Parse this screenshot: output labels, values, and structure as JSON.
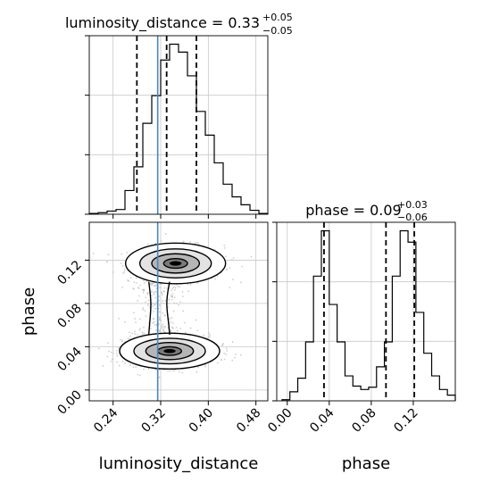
{
  "chart_data": {
    "type": "corner",
    "parameters": [
      "luminosity_distance",
      "phase"
    ],
    "truth": {
      "luminosity_distance": 0.315,
      "truth_color": "#4a86c0"
    },
    "panels": [
      {
        "id": "luminosity_distance_hist",
        "type": "histogram",
        "title_prefix": "luminosity_distance = ",
        "title_value": "0.33",
        "title_plus": "+0.05",
        "title_minus": "−0.05",
        "xlim": [
          0.2,
          0.5
        ],
        "grid": true,
        "bin_edges": [
          0.2,
          0.215,
          0.23,
          0.245,
          0.26,
          0.275,
          0.29,
          0.305,
          0.32,
          0.335,
          0.35,
          0.365,
          0.38,
          0.395,
          0.41,
          0.425,
          0.44,
          0.455,
          0.47,
          0.485,
          0.5
        ],
        "counts": [
          1,
          2,
          4,
          6,
          30,
          60,
          115,
          150,
          195,
          215,
          205,
          175,
          130,
          100,
          65,
          38,
          22,
          12,
          5,
          1
        ],
        "quantile_lines": [
          0.28,
          0.33,
          0.38
        ],
        "truth_line": 0.315
      },
      {
        "id": "phase_hist",
        "type": "histogram",
        "title_prefix": "phase = ",
        "title_value": "0.09",
        "title_plus": "+0.03",
        "title_minus": "−0.06",
        "xlim": [
          -0.01,
          0.16
        ],
        "grid": true,
        "x_tick_values": [
          0.0,
          0.04,
          0.08,
          0.12
        ],
        "x_tick_labels": [
          "0.00",
          "0.04",
          "0.08",
          "0.12"
        ],
        "xlabel": "phase",
        "bin_edges": [
          -0.005,
          0.0025,
          0.01,
          0.0175,
          0.025,
          0.0325,
          0.04,
          0.0475,
          0.055,
          0.0625,
          0.07,
          0.0775,
          0.085,
          0.0925,
          0.1,
          0.1075,
          0.115,
          0.1225,
          0.13,
          0.1375,
          0.145,
          0.1525,
          0.16
        ],
        "counts": [
          1,
          8,
          20,
          52,
          110,
          150,
          85,
          52,
          22,
          13,
          10,
          12,
          30,
          52,
          110,
          150,
          140,
          78,
          42,
          22,
          10,
          5
        ],
        "quantile_lines": [
          0.035,
          0.094,
          0.121
        ]
      },
      {
        "id": "joint",
        "type": "2d_density",
        "xlim": [
          0.2,
          0.5
        ],
        "ylim": [
          -0.01,
          0.155
        ],
        "grid": true,
        "x_tick_values": [
          0.24,
          0.32,
          0.4,
          0.48
        ],
        "x_tick_labels": [
          "0.24",
          "0.32",
          "0.40",
          "0.48"
        ],
        "y_tick_values": [
          0.0,
          0.04,
          0.08,
          0.12
        ],
        "y_tick_labels": [
          "0.00",
          "0.04",
          "0.08",
          "0.12"
        ],
        "xlabel": "luminosity_distance",
        "ylabel": "phase",
        "modes": [
          {
            "name": "upper",
            "center": [
              0.345,
              0.117
            ],
            "spread": [
              0.04,
              0.0085
            ]
          },
          {
            "name": "lower",
            "center": [
              0.335,
              0.036
            ],
            "spread": [
              0.04,
              0.0075
            ]
          }
        ],
        "truth_line_x": 0.315
      }
    ]
  }
}
